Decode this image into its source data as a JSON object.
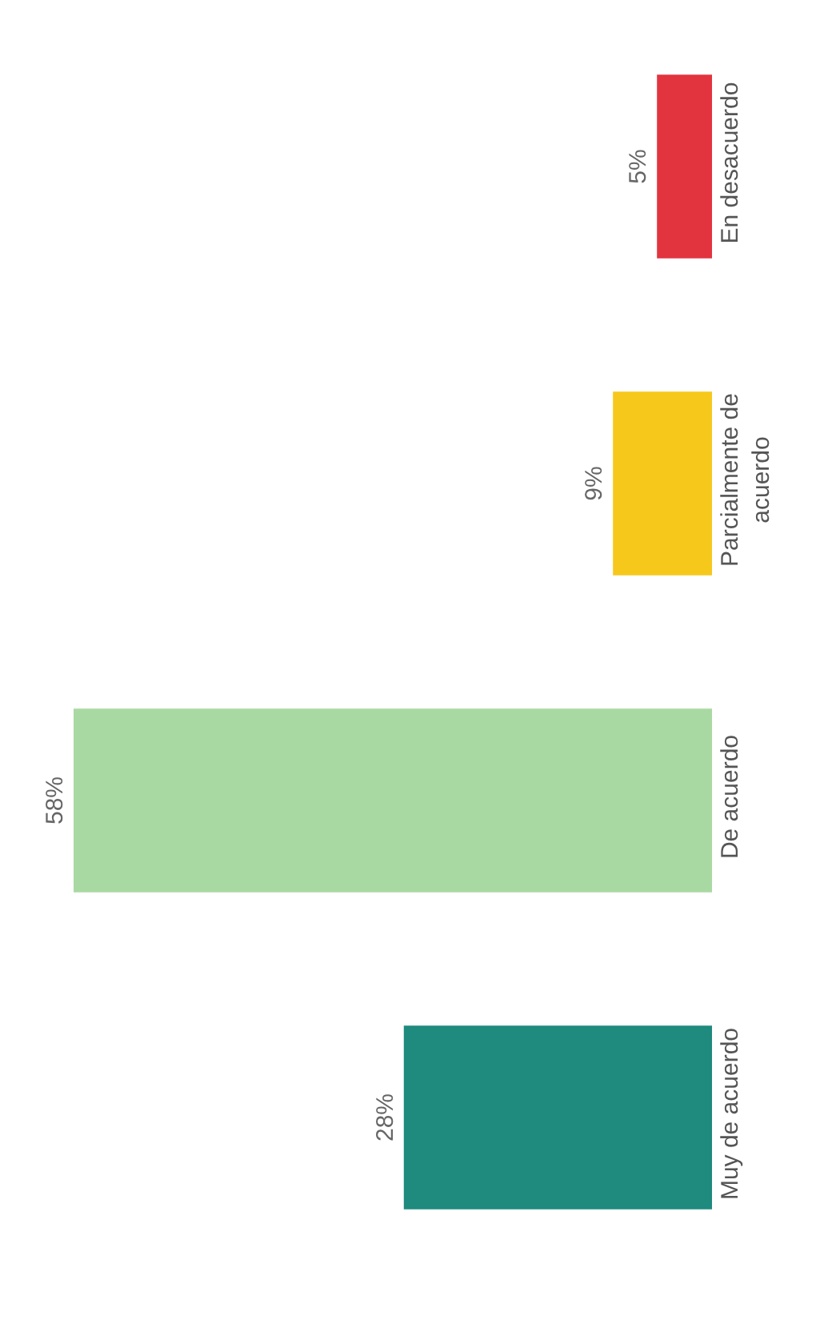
{
  "chart_data": {
    "type": "bar",
    "orientation": "horizontal",
    "categories": [
      "En desacuerdo",
      "Parcialmente de acuerdo",
      "De acuerdo",
      "Muy de acuerdo"
    ],
    "values": [
      5,
      9,
      58,
      28
    ],
    "colors": [
      "#e2343f",
      "#f6c81c",
      "#a9d9a2",
      "#1f8a7e"
    ],
    "value_labels": [
      "5%",
      "9%",
      "58%",
      "28%"
    ]
  }
}
